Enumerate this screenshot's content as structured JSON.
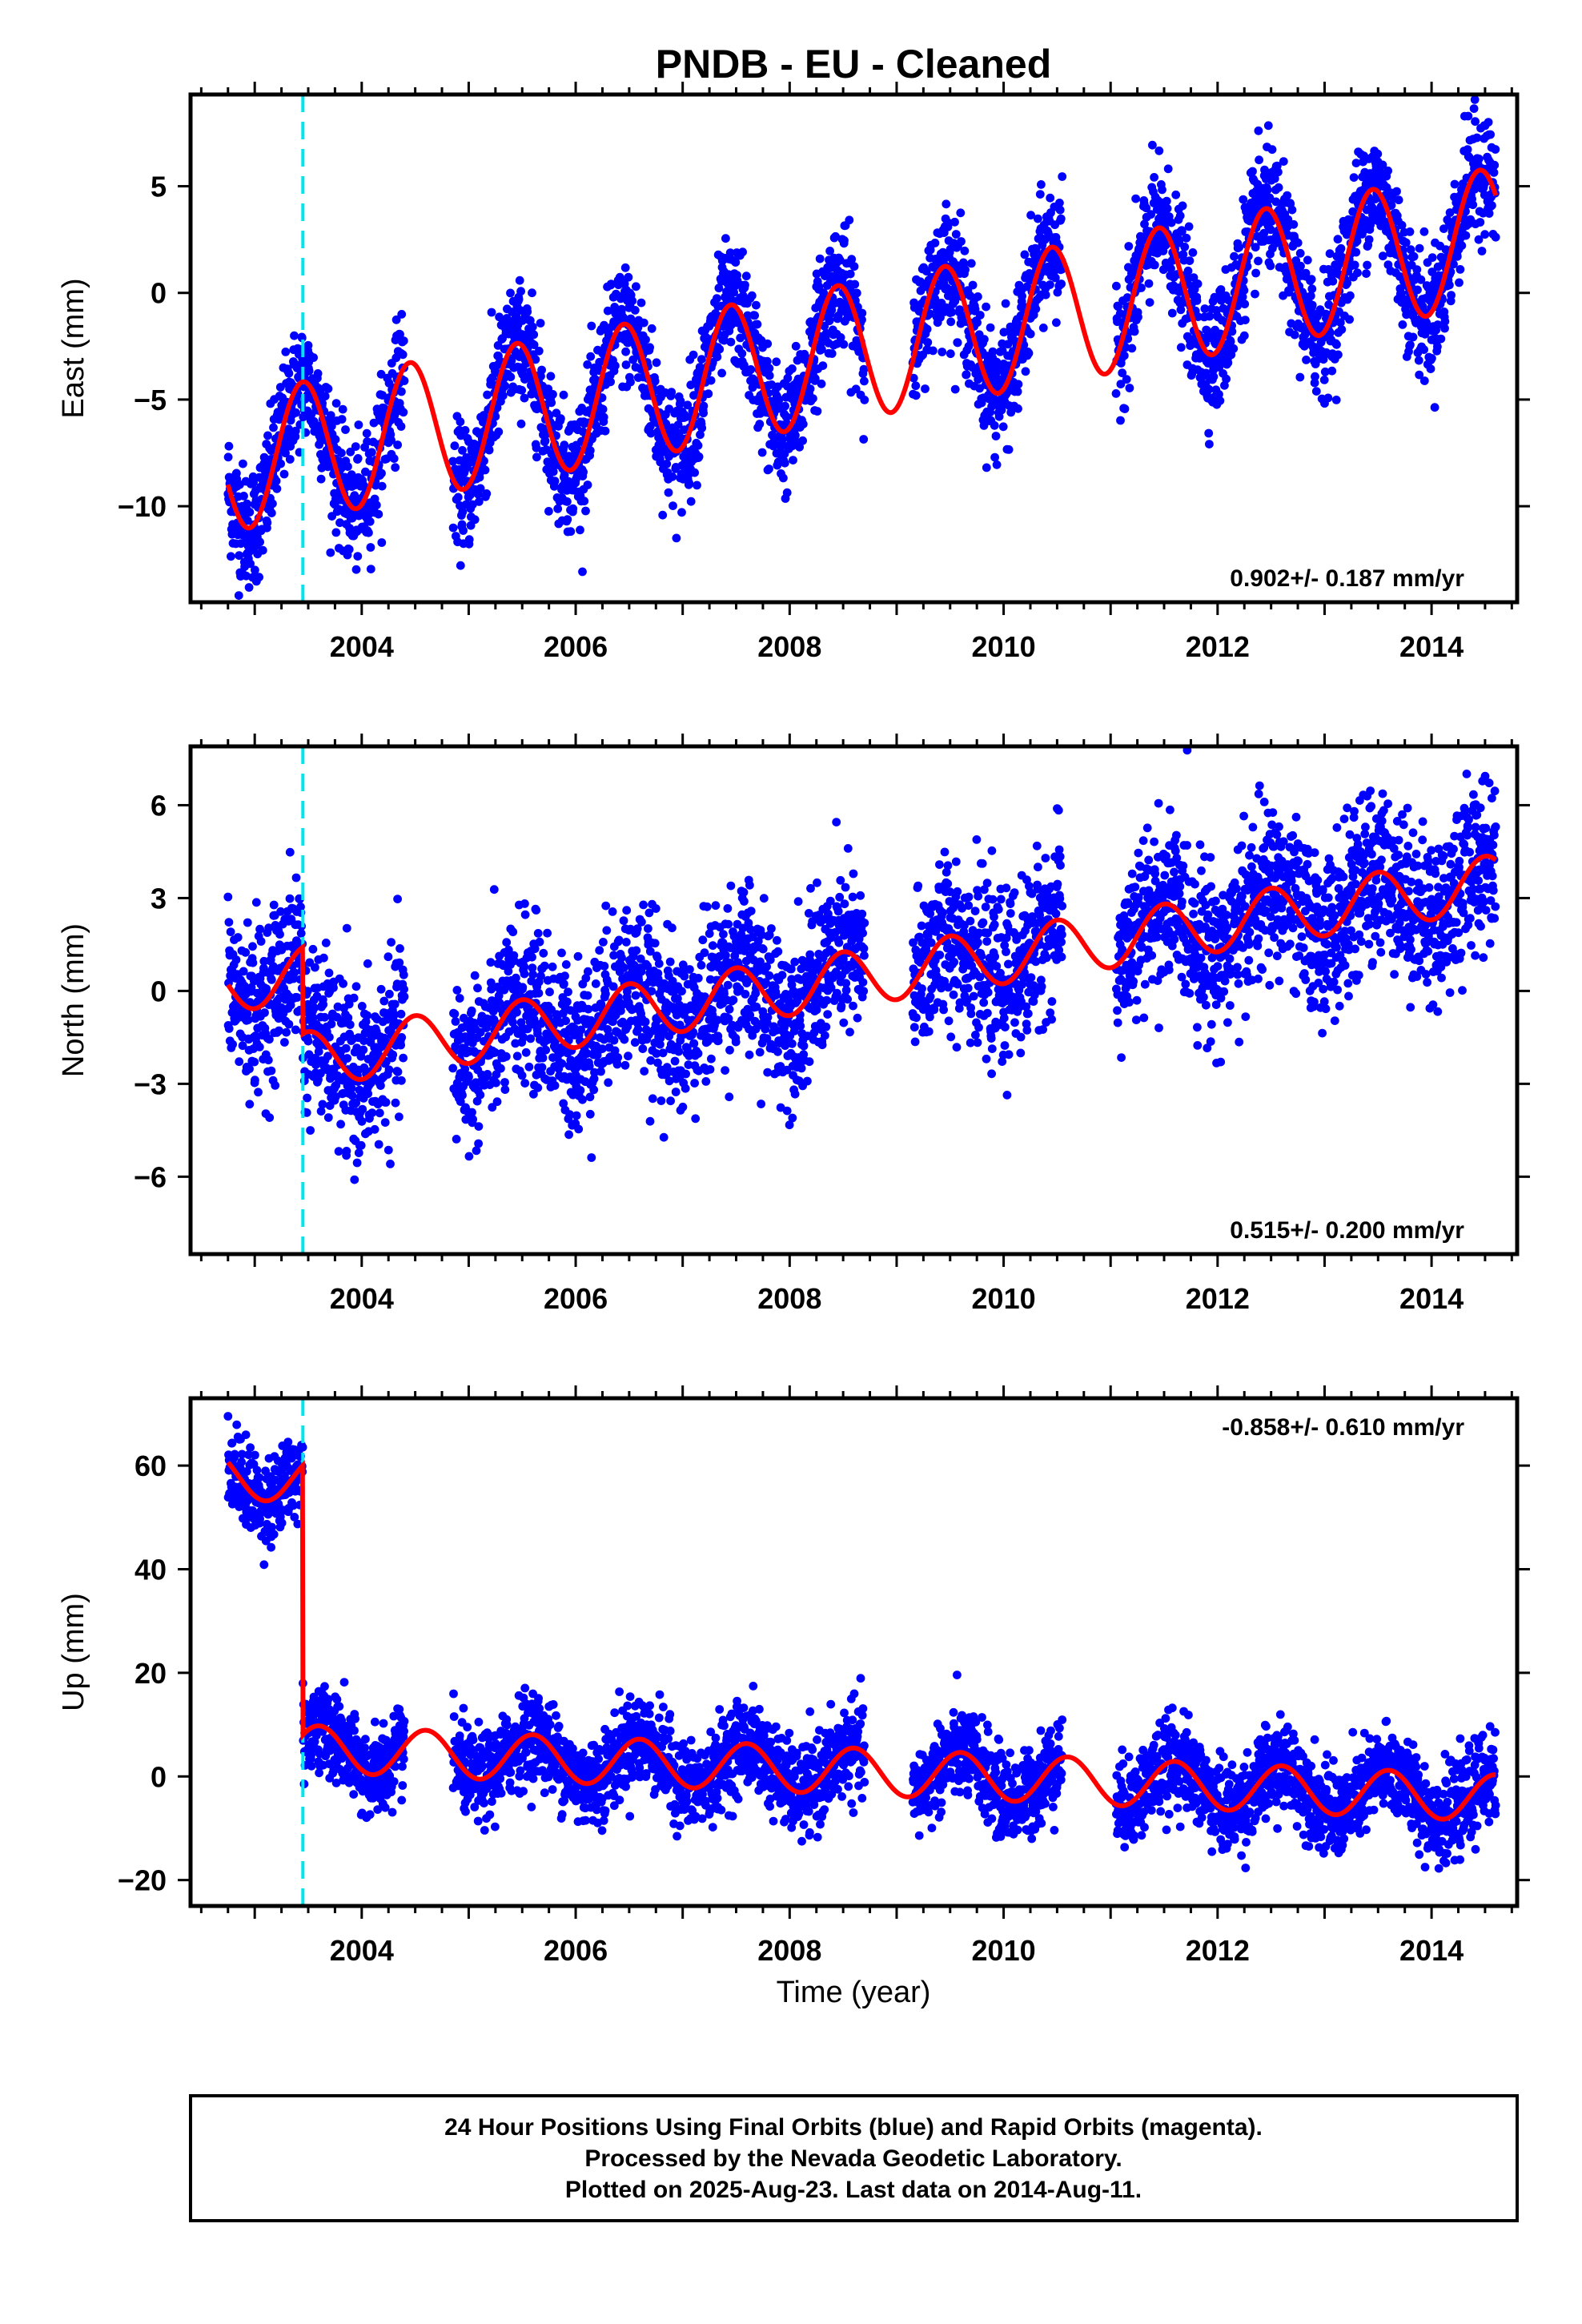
{
  "title": "PNDB  - EU - Cleaned",
  "xlabel": "Time (year)",
  "colors": {
    "data_points": "#0000ff",
    "model_curve": "#ff0000",
    "offset_line": "#00e5ee",
    "frame": "#000000"
  },
  "footer": {
    "line1": "24 Hour Positions Using Final Orbits (blue) and Rapid Orbits (magenta).",
    "line2": "Processed by the Nevada Geodetic Laboratory.",
    "line3": "Plotted on 2025-Aug-23. Last data on 2014-Aug-11."
  },
  "chart_data": [
    {
      "type": "scatter",
      "ylabel": "East (mm)",
      "rate_label": "0.902+/- 0.187 mm/yr",
      "rate_position": "bottom-right",
      "xlim": [
        2002.4,
        2014.8
      ],
      "ylim": [
        -14.5,
        9.3
      ],
      "xticks": [
        2004,
        2006,
        2008,
        2010,
        2012,
        2014
      ],
      "xtick_labels": [
        "2004",
        "2006",
        "2008",
        "2010",
        "2012",
        "2014"
      ],
      "yticks": [
        -10,
        -5,
        0,
        5
      ],
      "ytick_labels": [
        "−10",
        "−5",
        "0",
        "5"
      ],
      "offset_event_year": 2003.45,
      "data_span": [
        2002.75,
        2014.6
      ],
      "data_gaps": [
        [
          2004.4,
          2004.85
        ],
        [
          2008.7,
          2009.15
        ],
        [
          2010.55,
          2011.05
        ]
      ],
      "model": {
        "intercept": -8.0,
        "start_year": 2002.75,
        "rate": 0.902,
        "annual_amplitude": 3.2,
        "annual_peak": 0.45,
        "step": 0
      },
      "scatter_sd": 1.4
    },
    {
      "type": "scatter",
      "ylabel": "North (mm)",
      "rate_label": "0.515+/- 0.200 mm/yr",
      "rate_position": "bottom-right",
      "xlim": [
        2002.4,
        2014.8
      ],
      "ylim": [
        -8.5,
        7.9
      ],
      "xticks": [
        2004,
        2006,
        2008,
        2010,
        2012,
        2014
      ],
      "xtick_labels": [
        "2004",
        "2006",
        "2008",
        "2010",
        "2012",
        "2014"
      ],
      "yticks": [
        -6,
        -3,
        0,
        3,
        6
      ],
      "ytick_labels": [
        "−6",
        "−3",
        "0",
        "3",
        "6"
      ],
      "offset_event_year": 2003.45,
      "data_span": [
        2002.75,
        2014.6
      ],
      "data_gaps": [
        [
          2004.4,
          2004.85
        ],
        [
          2008.7,
          2009.15
        ],
        [
          2010.55,
          2011.05
        ]
      ],
      "model": {
        "intercept": 0.2,
        "start_year": 2002.75,
        "rate": 0.515,
        "annual_amplitude": 0.9,
        "annual_peak": 0.5,
        "step": -2.8
      },
      "scatter_sd": 1.3
    },
    {
      "type": "scatter",
      "ylabel": "Up (mm)",
      "rate_label": "-0.858+/- 0.610 mm/yr",
      "rate_position": "top-right",
      "xlim": [
        2002.4,
        2014.8
      ],
      "ylim": [
        -25,
        73
      ],
      "xticks": [
        2004,
        2006,
        2008,
        2010,
        2012,
        2014
      ],
      "xtick_labels": [
        "2004",
        "2006",
        "2008",
        "2010",
        "2012",
        "2014"
      ],
      "yticks": [
        -20,
        0,
        20,
        40,
        60
      ],
      "ytick_labels": [
        "−20",
        "0",
        "20",
        "40",
        "60"
      ],
      "offset_event_year": 2003.45,
      "data_span": [
        2002.75,
        2014.6
      ],
      "data_gaps": [
        [
          2004.4,
          2004.85
        ],
        [
          2008.7,
          2009.15
        ],
        [
          2010.55,
          2011.05
        ]
      ],
      "model": {
        "intercept": 58.0,
        "start_year": 2002.75,
        "rate": -0.858,
        "annual_amplitude": 4.5,
        "annual_peak": 0.6,
        "step": -52.0
      },
      "scatter_sd": 4.2
    }
  ]
}
